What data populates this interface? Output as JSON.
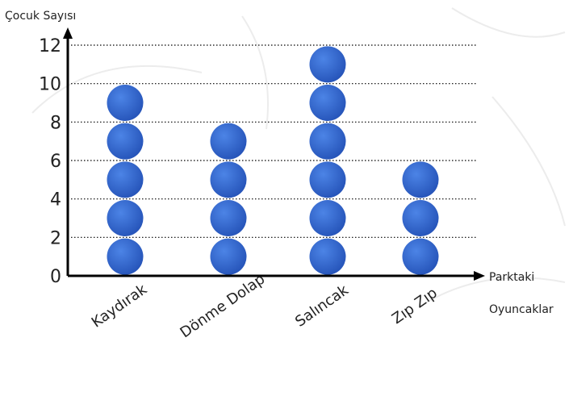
{
  "chart_data": {
    "type": "pictograph",
    "title": "",
    "ylabel": "Çocuk Sayısı",
    "xlabel_line1": "Parktaki",
    "xlabel_line2": "Oyuncaklar",
    "ylim": [
      0,
      12
    ],
    "yticks": [
      0,
      2,
      4,
      6,
      8,
      10,
      12
    ],
    "symbol_value": 2,
    "grid": "horizontal-dotted",
    "categories": [
      "Kaydırak",
      "Dönme Dolap",
      "Salıncak",
      "Zıp Zıp"
    ],
    "values": [
      10,
      8,
      12,
      6
    ],
    "symbol_color": "#2f63c9"
  }
}
